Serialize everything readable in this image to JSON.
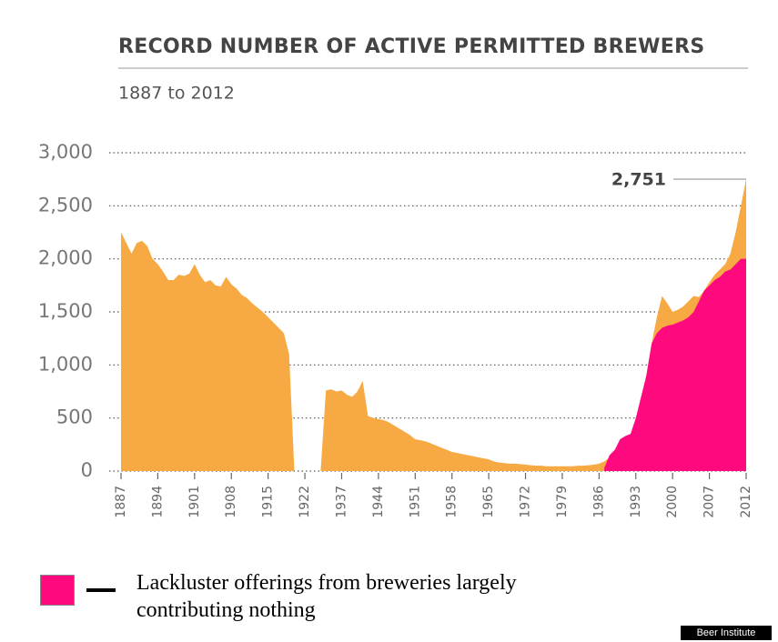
{
  "chart_data": {
    "type": "area",
    "title": "RECORD NUMBER OF ACTIVE PERMITTED BREWERS",
    "subtitle": "1887 to 2012",
    "source": "Beer Institute",
    "categories": [
      "1887",
      null,
      null,
      null,
      null,
      null,
      null,
      "1894",
      null,
      null,
      null,
      null,
      null,
      null,
      "1901",
      null,
      null,
      null,
      null,
      null,
      null,
      "1908",
      null,
      null,
      null,
      null,
      null,
      null,
      "1915",
      null,
      null,
      null,
      null,
      null,
      null,
      "1922",
      null,
      null,
      null,
      null,
      null,
      null,
      "1937",
      null,
      null,
      null,
      null,
      null,
      null,
      "1944",
      null,
      null,
      null,
      null,
      null,
      null,
      "1951",
      null,
      null,
      null,
      null,
      null,
      null,
      "1958",
      null,
      null,
      null,
      null,
      null,
      null,
      "1965",
      null,
      null,
      null,
      null,
      null,
      null,
      "1972",
      null,
      null,
      null,
      null,
      null,
      null,
      "1979",
      null,
      null,
      null,
      null,
      null,
      null,
      "1986",
      null,
      null,
      null,
      null,
      null,
      null,
      "1993",
      null,
      null,
      null,
      null,
      null,
      null,
      "2000",
      null,
      null,
      null,
      null,
      null,
      null,
      "2007",
      null,
      null,
      null,
      null,
      null,
      null,
      "2012"
    ],
    "series": [
      {
        "color": "#f7aa43",
        "values": [
          2250,
          2150,
          2050,
          2150,
          2170,
          2120,
          2000,
          1950,
          1880,
          1800,
          1800,
          1850,
          1840,
          1860,
          1950,
          1850,
          1780,
          1800,
          1750,
          1740,
          1830,
          1760,
          1720,
          1660,
          1630,
          1580,
          1540,
          1500,
          1450,
          1400,
          1350,
          1300,
          1100,
          0,
          0,
          0,
          0,
          0,
          0,
          760,
          770,
          750,
          760,
          720,
          700,
          750,
          850,
          520,
          500,
          490,
          480,
          460,
          430,
          400,
          370,
          340,
          300,
          290,
          280,
          260,
          240,
          220,
          200,
          180,
          170,
          160,
          150,
          140,
          130,
          120,
          110,
          90,
          80,
          75,
          70,
          70,
          65,
          60,
          55,
          50,
          50,
          45,
          45,
          45,
          45,
          45,
          45,
          50,
          50,
          55,
          60,
          70,
          90,
          130,
          170,
          200,
          260,
          300,
          400,
          600,
          900,
          1200,
          1450,
          1650,
          1580,
          1500,
          1520,
          1550,
          1600,
          1650,
          1640,
          1700,
          1780,
          1850,
          1900,
          1950,
          2050,
          2250,
          2500,
          2751
        ],
        "value_labels": [
          null,
          null,
          null,
          null,
          null,
          null,
          null,
          null,
          null,
          null,
          null,
          null,
          null,
          null,
          null,
          null,
          null,
          null,
          null,
          null,
          null,
          null,
          null,
          null,
          null,
          null,
          null,
          null,
          null,
          null,
          null,
          null,
          null,
          null,
          null,
          null,
          null,
          null,
          null,
          null,
          null,
          null,
          null,
          null,
          null,
          null,
          null,
          null,
          null,
          null,
          null,
          null,
          null,
          null,
          null,
          null,
          null,
          null,
          null,
          null,
          null,
          null,
          null,
          null,
          null,
          null,
          null,
          null,
          null,
          null,
          null,
          null,
          null,
          null,
          null,
          null,
          null,
          null,
          null,
          null,
          null,
          null,
          null,
          null,
          null,
          null,
          null,
          null,
          null,
          null,
          null,
          null,
          null,
          null,
          null,
          null,
          null,
          null,
          null,
          null,
          null,
          null,
          null,
          null,
          null,
          null,
          null,
          null,
          null,
          null,
          null,
          null,
          null,
          null,
          null,
          null,
          null,
          null,
          null,
          "2,751"
        ]
      },
      {
        "name": "Lackluster offerings from breweries largely contributing nothing",
        "color": "#ff0a7e",
        "values": [
          null,
          null,
          null,
          null,
          null,
          null,
          null,
          null,
          null,
          null,
          null,
          null,
          null,
          null,
          null,
          null,
          null,
          null,
          null,
          null,
          null,
          null,
          null,
          null,
          null,
          null,
          null,
          null,
          null,
          null,
          null,
          null,
          null,
          null,
          null,
          null,
          null,
          null,
          null,
          null,
          null,
          null,
          null,
          null,
          null,
          null,
          null,
          null,
          null,
          null,
          null,
          null,
          null,
          null,
          null,
          null,
          null,
          null,
          null,
          null,
          null,
          null,
          null,
          null,
          null,
          null,
          null,
          null,
          null,
          null,
          null,
          null,
          null,
          null,
          null,
          null,
          null,
          null,
          null,
          null,
          null,
          null,
          null,
          null,
          null,
          null,
          null,
          null,
          null,
          null,
          null,
          null,
          30,
          150,
          200,
          300,
          330,
          350,
          500,
          700,
          900,
          1200,
          1300,
          1350,
          1370,
          1380,
          1400,
          1420,
          1450,
          1500,
          1600,
          1700,
          1750,
          1800,
          1830,
          1880,
          1900,
          1950,
          2000,
          2000
        ]
      }
    ],
    "ylim": [
      0,
      3000
    ],
    "yticks": [
      0,
      500,
      {
        "value": 1000,
        "label": "1,000"
      },
      {
        "value": 1500,
        "label": "1,500"
      },
      {
        "value": 2000,
        "label": "2,000"
      },
      {
        "value": 2500,
        "label": "2,500"
      },
      {
        "value": 3000,
        "label": "3,000"
      }
    ],
    "grid": true
  }
}
